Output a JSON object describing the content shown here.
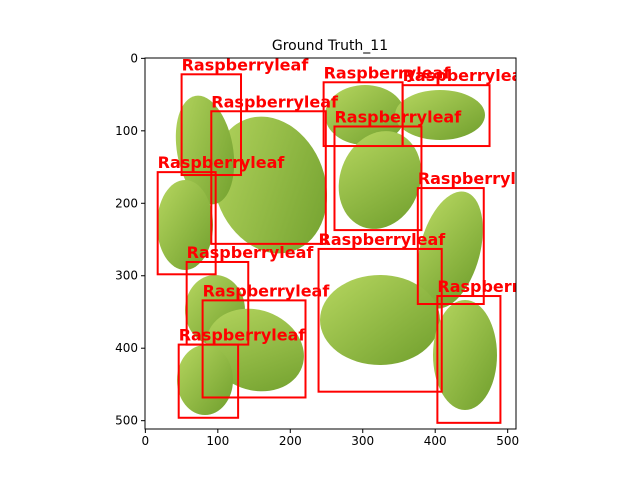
{
  "chart_data": {
    "type": "boxes",
    "title": "Ground Truth_11",
    "xlim": [
      -0.5,
      511.5
    ],
    "ylim": [
      511.5,
      -0.5
    ],
    "xticks": [
      0,
      100,
      200,
      300,
      400,
      500
    ],
    "yticks": [
      0,
      100,
      200,
      300,
      400,
      500
    ],
    "color": "#ff0000",
    "boxes": [
      {
        "label": "Raspberryleaf",
        "x0": 50,
        "y0": 22,
        "x1": 132,
        "y1": 161
      },
      {
        "label": "Raspberryleaf",
        "x0": 91,
        "y0": 73,
        "x1": 249,
        "y1": 256
      },
      {
        "label": "Raspberryleaf",
        "x0": 17,
        "y0": 157,
        "x1": 97,
        "y1": 298
      },
      {
        "label": "Raspberryleaf",
        "x0": 246,
        "y0": 33,
        "x1": 355,
        "y1": 121
      },
      {
        "label": "Raspberryleaf",
        "x0": 355,
        "y0": 37,
        "x1": 475,
        "y1": 121
      },
      {
        "label": "Raspberryleaf",
        "x0": 261,
        "y0": 94,
        "x1": 381,
        "y1": 237
      },
      {
        "label": "Raspberryleaf",
        "x0": 376,
        "y0": 179,
        "x1": 467,
        "y1": 339
      },
      {
        "label": "Raspberryleaf",
        "x0": 57,
        "y0": 281,
        "x1": 142,
        "y1": 395
      },
      {
        "label": "Raspberryleaf",
        "x0": 239,
        "y0": 263,
        "x1": 409,
        "y1": 460
      },
      {
        "label": "Raspberryleaf",
        "x0": 79,
        "y0": 334,
        "x1": 221,
        "y1": 468
      },
      {
        "label": "Raspberryleaf",
        "x0": 403,
        "y0": 328,
        "x1": 490,
        "y1": 503
      },
      {
        "label": "Raspberryleaf",
        "x0": 46,
        "y0": 395,
        "x1": 128,
        "y1": 496
      }
    ]
  }
}
